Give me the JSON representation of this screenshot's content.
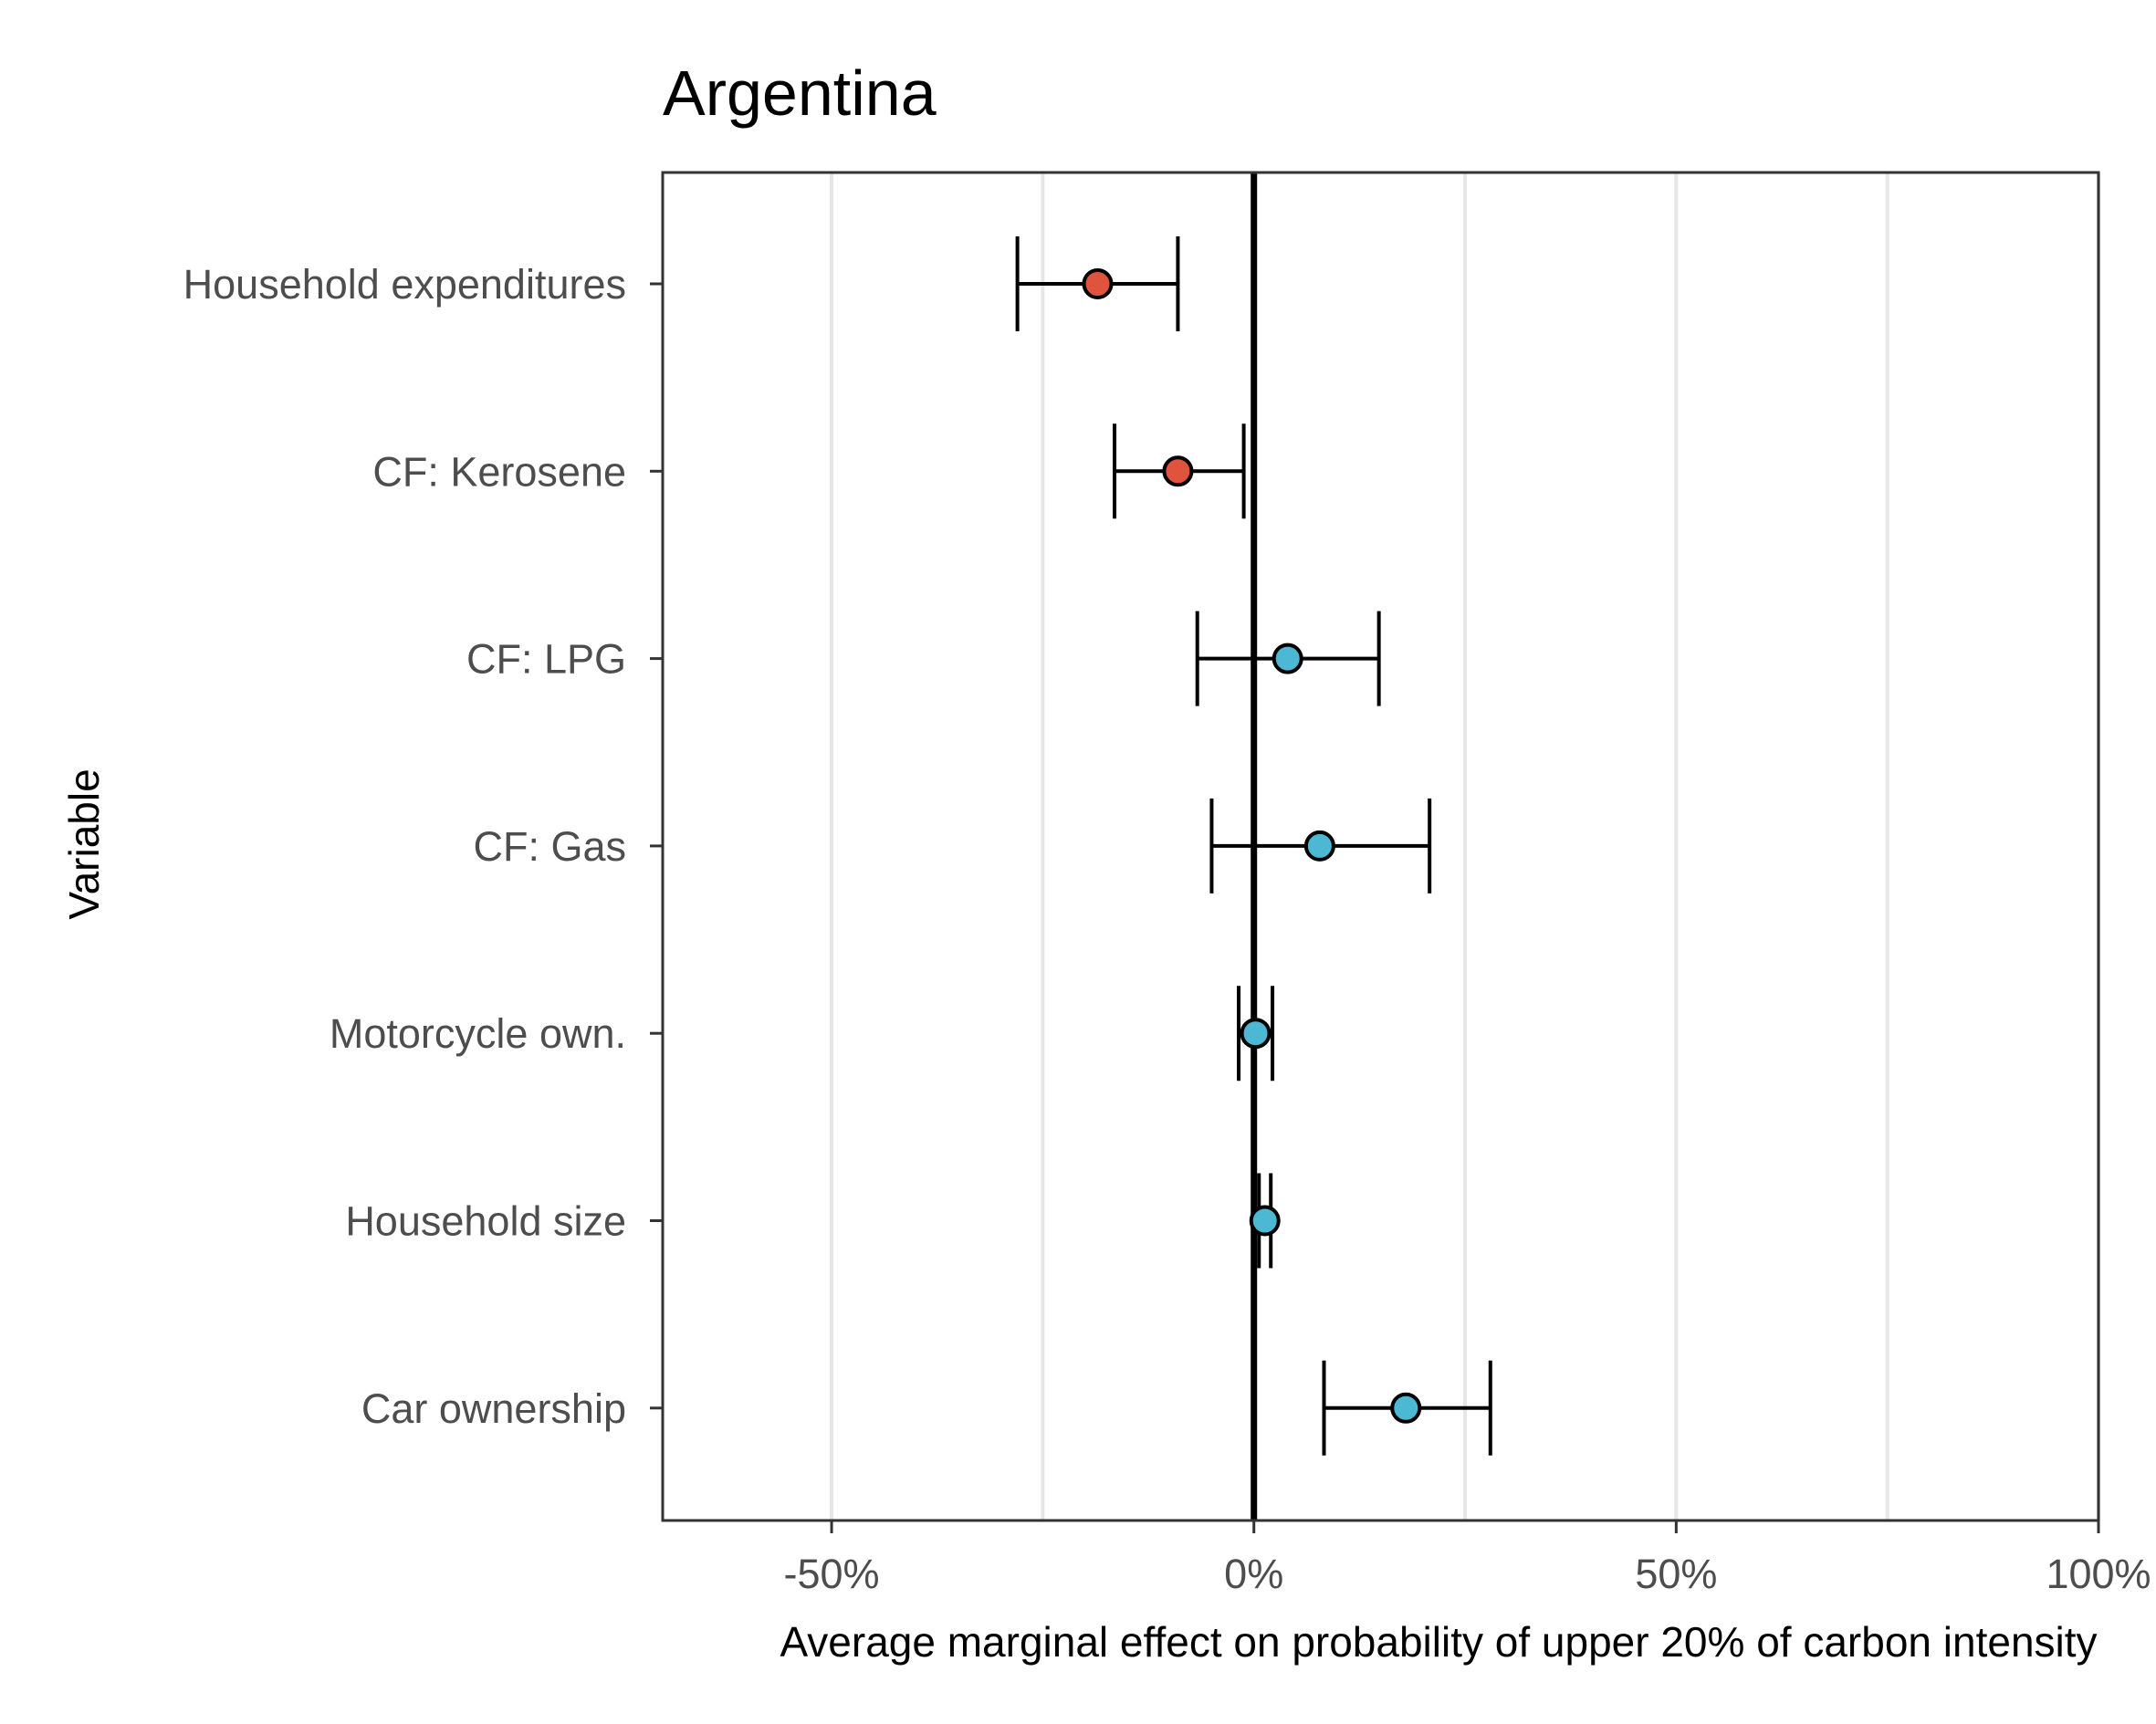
{
  "chart_data": {
    "type": "scatter",
    "title": "Argentina",
    "xlabel": "Average marginal effect on probability of upper 20% of carbon intensity",
    "ylabel": "Variable",
    "xlim": [
      -70,
      100
    ],
    "x_ticks": [
      -50,
      0,
      50,
      100
    ],
    "x_tick_labels": [
      "-50%",
      "0%",
      "50%",
      "100%"
    ],
    "x_minor_grid": [
      -25,
      25,
      75
    ],
    "reference_line_x": 0,
    "grid": "vertical only",
    "colors": {
      "negative": "#e0533c",
      "positive": "#4cb8d4"
    },
    "categories": [
      "Household expenditures",
      "CF: Kerosene",
      "CF: LPG",
      "CF: Gas",
      "Motorcycle own.",
      "Household size",
      "Car ownership"
    ],
    "estimates": [
      {
        "variable": "Household expenditures",
        "estimate": -18.5,
        "lower": -28,
        "upper": -9,
        "sign": "negative"
      },
      {
        "variable": "CF: Kerosene",
        "estimate": -9,
        "lower": -16.5,
        "upper": -1.2,
        "sign": "negative"
      },
      {
        "variable": "CF: LPG",
        "estimate": 4,
        "lower": -6.7,
        "upper": 14.8,
        "sign": "positive"
      },
      {
        "variable": "CF: Gas",
        "estimate": 7.8,
        "lower": -5,
        "upper": 20.8,
        "sign": "positive"
      },
      {
        "variable": "Motorcycle own.",
        "estimate": 0.2,
        "lower": -1.8,
        "upper": 2.2,
        "sign": "positive"
      },
      {
        "variable": "Household size",
        "estimate": 1.3,
        "lower": 0.6,
        "upper": 2,
        "sign": "positive"
      },
      {
        "variable": "Car ownership",
        "estimate": 18,
        "lower": 8.3,
        "upper": 28,
        "sign": "positive"
      }
    ]
  }
}
